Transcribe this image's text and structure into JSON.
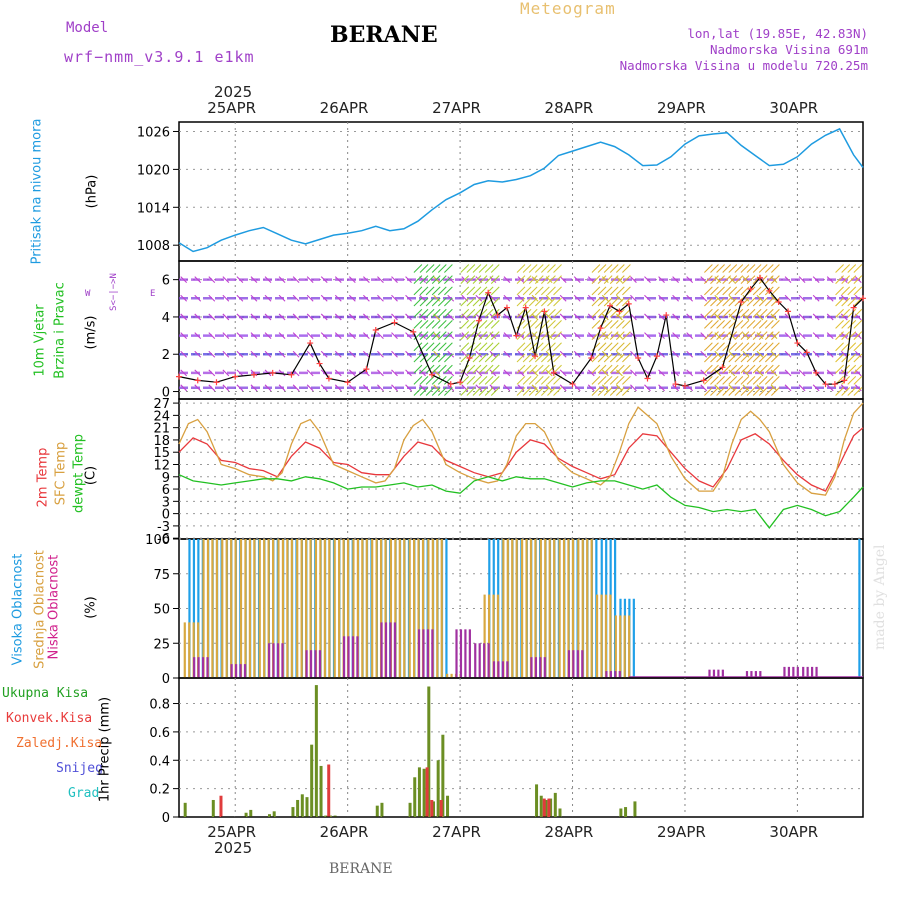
{
  "header": {
    "title": "BERANE",
    "model_label": "Model",
    "model_name": "wrf−nmm_v3.9.1 e1km",
    "product": "Meteogram",
    "lonlat": "lon,lat (19.85E, 42.83N)",
    "elevation": "Nadmorska Visina 691m",
    "model_elevation": "Nadmorska Visina u modelu 720.25m",
    "footer": "BERANE",
    "watermark": "made by Angel"
  },
  "colors": {
    "pressure": "#1e9be0",
    "temp2m": "#e8383c",
    "sfc": "#d8a040",
    "dewpt": "#22c022",
    "wind_line": "#000000",
    "wind_marker": "#ff4040",
    "cloud_high": "#20a0e8",
    "cloud_mid": "#d8a840",
    "cloud_low": "#a030a0",
    "precip_total": "#6b8e23",
    "precip_conv": "#e03c3c"
  },
  "axes": {
    "year": "2025",
    "dates": [
      "25APR",
      "26APR",
      "27APR",
      "28APR",
      "29APR",
      "30APR"
    ],
    "x_range_hours": [
      0,
      146
    ]
  },
  "panel_labels": {
    "pressure": {
      "name": "Pritisak na nivou mora",
      "unit": "(hPa)"
    },
    "wind": {
      "name1": "10m Vjetar",
      "name2": "Brzina i Pravac",
      "unit": "(m/s)",
      "compass_ns": "S<−|−>N",
      "compass_w": "W",
      "compass_e": "E"
    },
    "temp": {
      "l1": "2m Temp",
      "l2": "SFC Temp",
      "l3": "dewpt Temp",
      "unit": "(C)"
    },
    "cloud": {
      "l1": "Visoka Oblacnost",
      "l2": "Srednja Oblacnost",
      "l3": "Niska Oblacnost",
      "unit": "(%)"
    },
    "precip": {
      "l1": "Ukupna Kisa",
      "l2": "Konvek.Kisa",
      "l3": "Zaledj.Kisa",
      "l4": "Snijeg",
      "l5": "Grad",
      "unit": "1hr Precip (mm)"
    }
  },
  "chart_data": [
    {
      "type": "line",
      "panel": "pressure",
      "ylabel": "(hPa)",
      "yticks": [
        1008,
        1014,
        1020,
        1026
      ],
      "ylim": [
        1005.5,
        1027.5
      ],
      "x": [
        0,
        3,
        6,
        9,
        12,
        15,
        18,
        21,
        24,
        27,
        30,
        33,
        36,
        39,
        42,
        45,
        48,
        51,
        54,
        57,
        60,
        63,
        66,
        69,
        72,
        75,
        78,
        81,
        84,
        87,
        90,
        93,
        96,
        99,
        102,
        105,
        108,
        111,
        114,
        117,
        120,
        123,
        126,
        129,
        132,
        135,
        138,
        141,
        144,
        146
      ],
      "values": [
        1008.4,
        1007.0,
        1007.6,
        1008.8,
        1009.6,
        1010.3,
        1010.8,
        1009.8,
        1008.8,
        1008.2,
        1008.9,
        1009.6,
        1009.9,
        1010.3,
        1011.0,
        1010.3,
        1010.6,
        1011.8,
        1013.6,
        1015.2,
        1016.3,
        1017.6,
        1018.2,
        1018.0,
        1018.4,
        1019.0,
        1020.2,
        1022.2,
        1022.9,
        1023.6,
        1024.3,
        1023.6,
        1022.3,
        1020.6,
        1020.7,
        1022.0,
        1024.0,
        1025.3,
        1025.6,
        1025.8,
        1023.8,
        1022.2,
        1020.6,
        1020.8,
        1022.0,
        1024.0,
        1025.4,
        1026.4,
        1022.3,
        1020.3
      ]
    },
    {
      "type": "line",
      "panel": "wind",
      "ylabel": "(m/s)",
      "yticks": [
        0,
        2,
        4,
        6
      ],
      "ylim": [
        -0.4,
        7.0
      ],
      "series": [
        {
          "name": "",
          "x": [
            0,
            4,
            8,
            12,
            16,
            20,
            24,
            28,
            30,
            32,
            36,
            40,
            42,
            46,
            50,
            54,
            58,
            60,
            62,
            64,
            66,
            68,
            70,
            72,
            74,
            76,
            78,
            80,
            84,
            88,
            90,
            92,
            94,
            96,
            98,
            100,
            102,
            104,
            106,
            108,
            112,
            116,
            120,
            122,
            124,
            126,
            128,
            130,
            132,
            134,
            136,
            138,
            140,
            142,
            144,
            146
          ],
          "values": [
            0.8,
            0.6,
            0.5,
            0.8,
            0.9,
            1.0,
            0.9,
            2.6,
            1.5,
            0.7,
            0.5,
            1.2,
            3.3,
            3.7,
            3.2,
            0.9,
            0.4,
            0.5,
            1.8,
            3.8,
            5.3,
            4.1,
            4.5,
            3.0,
            4.5,
            1.9,
            4.3,
            1.0,
            0.4,
            1.8,
            3.4,
            4.6,
            4.3,
            4.7,
            1.8,
            0.7,
            1.9,
            4.1,
            0.4,
            0.3,
            0.6,
            1.3,
            4.8,
            5.5,
            6.1,
            5.4,
            4.8,
            4.3,
            2.6,
            2.1,
            1.0,
            0.4,
            0.4,
            0.6,
            4.5,
            5.0
          ]
        }
      ]
    },
    {
      "type": "line",
      "panel": "temperature",
      "ylabel": "(C)",
      "yticks": [
        -6,
        -3,
        0,
        3,
        6,
        9,
        12,
        15,
        18,
        21,
        24,
        27
      ],
      "ylim": [
        -6.2,
        28.0
      ],
      "series": [
        {
          "name": "2m Temp",
          "x": [
            0,
            3,
            6,
            9,
            12,
            15,
            18,
            21,
            24,
            27,
            30,
            33,
            36,
            39,
            42,
            45,
            48,
            51,
            54,
            57,
            60,
            63,
            66,
            69,
            72,
            75,
            78,
            81,
            84,
            87,
            90,
            93,
            96,
            99,
            102,
            105,
            108,
            111,
            114,
            117,
            120,
            123,
            126,
            129,
            132,
            135,
            138,
            141,
            144,
            146
          ],
          "values": [
            15,
            18.5,
            17,
            13,
            12.5,
            11,
            10.5,
            9,
            14,
            17.5,
            16,
            12.5,
            12,
            10,
            9.5,
            9.5,
            14,
            17.5,
            16.5,
            13,
            11.5,
            10,
            9,
            10,
            15,
            18,
            17,
            13.5,
            11.5,
            10,
            8.5,
            9.5,
            16,
            19.5,
            19,
            15,
            11,
            8,
            6.5,
            11,
            18,
            19.5,
            17,
            13,
            9.5,
            7,
            5.5,
            12,
            19,
            21
          ]
        },
        {
          "name": "SFC Temp",
          "x": [
            0,
            2,
            4,
            6,
            9,
            12,
            15,
            18,
            20,
            22,
            24,
            26,
            28,
            30,
            33,
            36,
            39,
            42,
            44,
            46,
            48,
            50,
            52,
            54,
            57,
            60,
            63,
            66,
            68,
            70,
            72,
            74,
            76,
            78,
            81,
            84,
            87,
            90,
            92,
            94,
            96,
            98,
            100,
            102,
            105,
            108,
            111,
            114,
            116,
            118,
            120,
            122,
            124,
            126,
            129,
            132,
            135,
            138,
            140,
            142,
            144,
            146
          ],
          "values": [
            17,
            22,
            23,
            20,
            12,
            11,
            9.5,
            9,
            8,
            10,
            17,
            22,
            23,
            20,
            12,
            10.5,
            9,
            7.5,
            8,
            11,
            18,
            21.5,
            23,
            20,
            12,
            10,
            8.5,
            7.5,
            8,
            12,
            19,
            22,
            22,
            20,
            13,
            10,
            8.5,
            7,
            9,
            15,
            22,
            26,
            24,
            22,
            14,
            8.5,
            5.5,
            5.5,
            9,
            17,
            23,
            25,
            23,
            20,
            12,
            7.5,
            5,
            4.5,
            9,
            18,
            24.5,
            27
          ]
        },
        {
          "name": "dewpt Temp",
          "x": [
            0,
            3,
            6,
            9,
            12,
            15,
            18,
            21,
            24,
            27,
            30,
            33,
            36,
            39,
            42,
            45,
            48,
            51,
            54,
            57,
            60,
            63,
            66,
            69,
            72,
            75,
            78,
            81,
            84,
            87,
            90,
            93,
            96,
            99,
            102,
            105,
            108,
            111,
            114,
            117,
            120,
            123,
            126,
            129,
            132,
            135,
            138,
            141,
            144,
            146
          ],
          "values": [
            9.5,
            8,
            7.5,
            7,
            7.5,
            8,
            8.5,
            8.5,
            8,
            9,
            8.5,
            7.5,
            6,
            6.5,
            6.5,
            7,
            7.5,
            6.5,
            7,
            5.5,
            5,
            8,
            9,
            8,
            9,
            8.5,
            8.5,
            7.5,
            6.5,
            7.5,
            8,
            8,
            7,
            6,
            7,
            4,
            2,
            1.5,
            0.5,
            1,
            0.5,
            1,
            -3.5,
            1,
            2,
            1,
            -0.5,
            0.5,
            4,
            6.5
          ]
        }
      ]
    },
    {
      "type": "bar",
      "panel": "cloud",
      "ylabel": "(%)",
      "yticks": [
        0,
        25,
        50,
        75,
        100
      ],
      "ylim": [
        0,
        100
      ],
      "note": "cloud cover from approx. hour 2 to hour 96 is 100% (high/mid) with intermittent low cloud; clear from hour 96 to 144; values sampled every hour",
      "series": [
        {
          "name": "Visoka Oblacnost",
          "x": [
            2,
            6,
            10,
            14,
            18,
            22,
            26,
            30,
            34,
            38,
            42,
            46,
            50,
            54,
            58,
            62,
            66,
            70,
            74,
            78,
            82,
            86,
            90,
            94,
            98,
            102,
            106,
            110,
            114,
            118,
            122,
            126,
            130,
            134,
            138,
            142,
            145
          ],
          "values": [
            100,
            100,
            100,
            100,
            100,
            100,
            100,
            100,
            100,
            100,
            100,
            100,
            100,
            100,
            0,
            0,
            100,
            100,
            100,
            100,
            100,
            100,
            100,
            57,
            0,
            0,
            0,
            0,
            0,
            0,
            0,
            0,
            0,
            0,
            0,
            0,
            100
          ]
        },
        {
          "name": "Srednja Oblacnost",
          "x": [
            1,
            5,
            9,
            13,
            17,
            21,
            25,
            29,
            33,
            37,
            41,
            45,
            49,
            53,
            57,
            61,
            65,
            69,
            73,
            77,
            81,
            85,
            89,
            93,
            97
          ],
          "values": [
            40,
            100,
            100,
            100,
            100,
            100,
            100,
            100,
            100,
            100,
            100,
            100,
            100,
            100,
            3,
            0,
            60,
            100,
            100,
            100,
            100,
            100,
            60,
            45,
            0
          ]
        },
        {
          "name": "Niska Oblacnost",
          "x": [
            3,
            11,
            19,
            27,
            35,
            43,
            51,
            59,
            63,
            67,
            75,
            83,
            91,
            101,
            113,
            121,
            129,
            133
          ],
          "values": [
            15,
            10,
            25,
            20,
            30,
            40,
            35,
            35,
            25,
            12,
            15,
            20,
            5,
            0,
            6,
            5,
            8,
            8
          ]
        }
      ]
    },
    {
      "type": "bar",
      "panel": "precipitation",
      "ylabel": "1hr Precip (mm)",
      "yticks": [
        0,
        0.2,
        0.4,
        0.6,
        0.8
      ],
      "ylim": [
        0,
        0.98
      ],
      "series": [
        {
          "name": "Ukupna Kisa",
          "x": [
            1,
            7,
            14,
            15,
            19,
            20,
            24,
            25,
            26,
            27,
            28,
            29,
            30,
            31,
            32,
            33,
            42,
            43,
            49,
            50,
            51,
            52,
            53,
            54,
            55,
            56,
            57,
            76,
            77,
            78,
            79,
            80,
            81,
            94,
            95,
            97
          ],
          "values": [
            0.1,
            0.12,
            0.03,
            0.05,
            0.02,
            0.04,
            0.07,
            0.12,
            0.16,
            0.14,
            0.51,
            0.93,
            0.36,
            0.01,
            0.01,
            0.01,
            0.08,
            0.1,
            0.1,
            0.28,
            0.35,
            0.34,
            0.92,
            0.11,
            0.4,
            0.58,
            0.15,
            0.23,
            0.15,
            0.12,
            0.13,
            0.17,
            0.06,
            0.06,
            0.07,
            0.11
          ]
        },
        {
          "name": "Konvek.Kisa",
          "x": [
            8,
            31,
            52,
            53,
            55,
            77,
            78
          ],
          "values": [
            0.15,
            0.37,
            0.35,
            0.12,
            0.12,
            0.13,
            0.13
          ]
        }
      ]
    }
  ]
}
